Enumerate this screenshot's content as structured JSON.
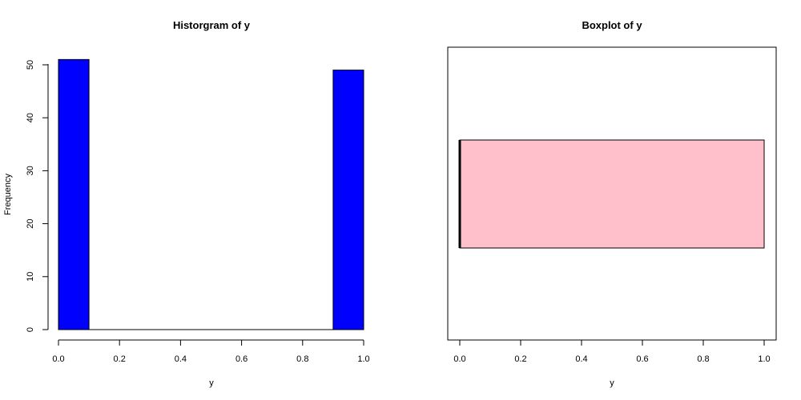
{
  "chart_data": [
    {
      "type": "bar",
      "title": "Historgram of y",
      "xlabel": "y",
      "ylabel": "Frequency",
      "bins": [
        {
          "x0": 0.0,
          "x1": 0.1,
          "count": 51
        },
        {
          "x0": 0.1,
          "x1": 0.2,
          "count": 0
        },
        {
          "x0": 0.2,
          "x1": 0.3,
          "count": 0
        },
        {
          "x0": 0.3,
          "x1": 0.4,
          "count": 0
        },
        {
          "x0": 0.4,
          "x1": 0.5,
          "count": 0
        },
        {
          "x0": 0.5,
          "x1": 0.6,
          "count": 0
        },
        {
          "x0": 0.6,
          "x1": 0.7,
          "count": 0
        },
        {
          "x0": 0.7,
          "x1": 0.8,
          "count": 0
        },
        {
          "x0": 0.8,
          "x1": 0.9,
          "count": 0
        },
        {
          "x0": 0.9,
          "x1": 1.0,
          "count": 49
        }
      ],
      "xlim": [
        0,
        1
      ],
      "ylim": [
        0,
        51
      ],
      "xticks": [
        0.0,
        0.2,
        0.4,
        0.6,
        0.8,
        1.0
      ],
      "xtick_labels": [
        "0.0",
        "0.2",
        "0.4",
        "0.6",
        "0.8",
        "1.0"
      ],
      "yticks": [
        0,
        10,
        20,
        30,
        40,
        50
      ],
      "ytick_labels": [
        "0",
        "10",
        "20",
        "30",
        "40",
        "50"
      ],
      "bar_color": "#0000ff",
      "grid": false
    },
    {
      "type": "box",
      "orientation": "horizontal",
      "title": "Boxplot of y",
      "xlabel": "y",
      "ylabel": "",
      "min": 0,
      "q1": 0,
      "median": 0,
      "q3": 1,
      "max": 1,
      "xlim": [
        -0.04,
        1.04
      ],
      "xticks": [
        0.0,
        0.2,
        0.4,
        0.6,
        0.8,
        1.0
      ],
      "xtick_labels": [
        "0.0",
        "0.2",
        "0.4",
        "0.6",
        "0.8",
        "1.0"
      ],
      "box_color": "#ffc0cb",
      "grid": false
    }
  ]
}
